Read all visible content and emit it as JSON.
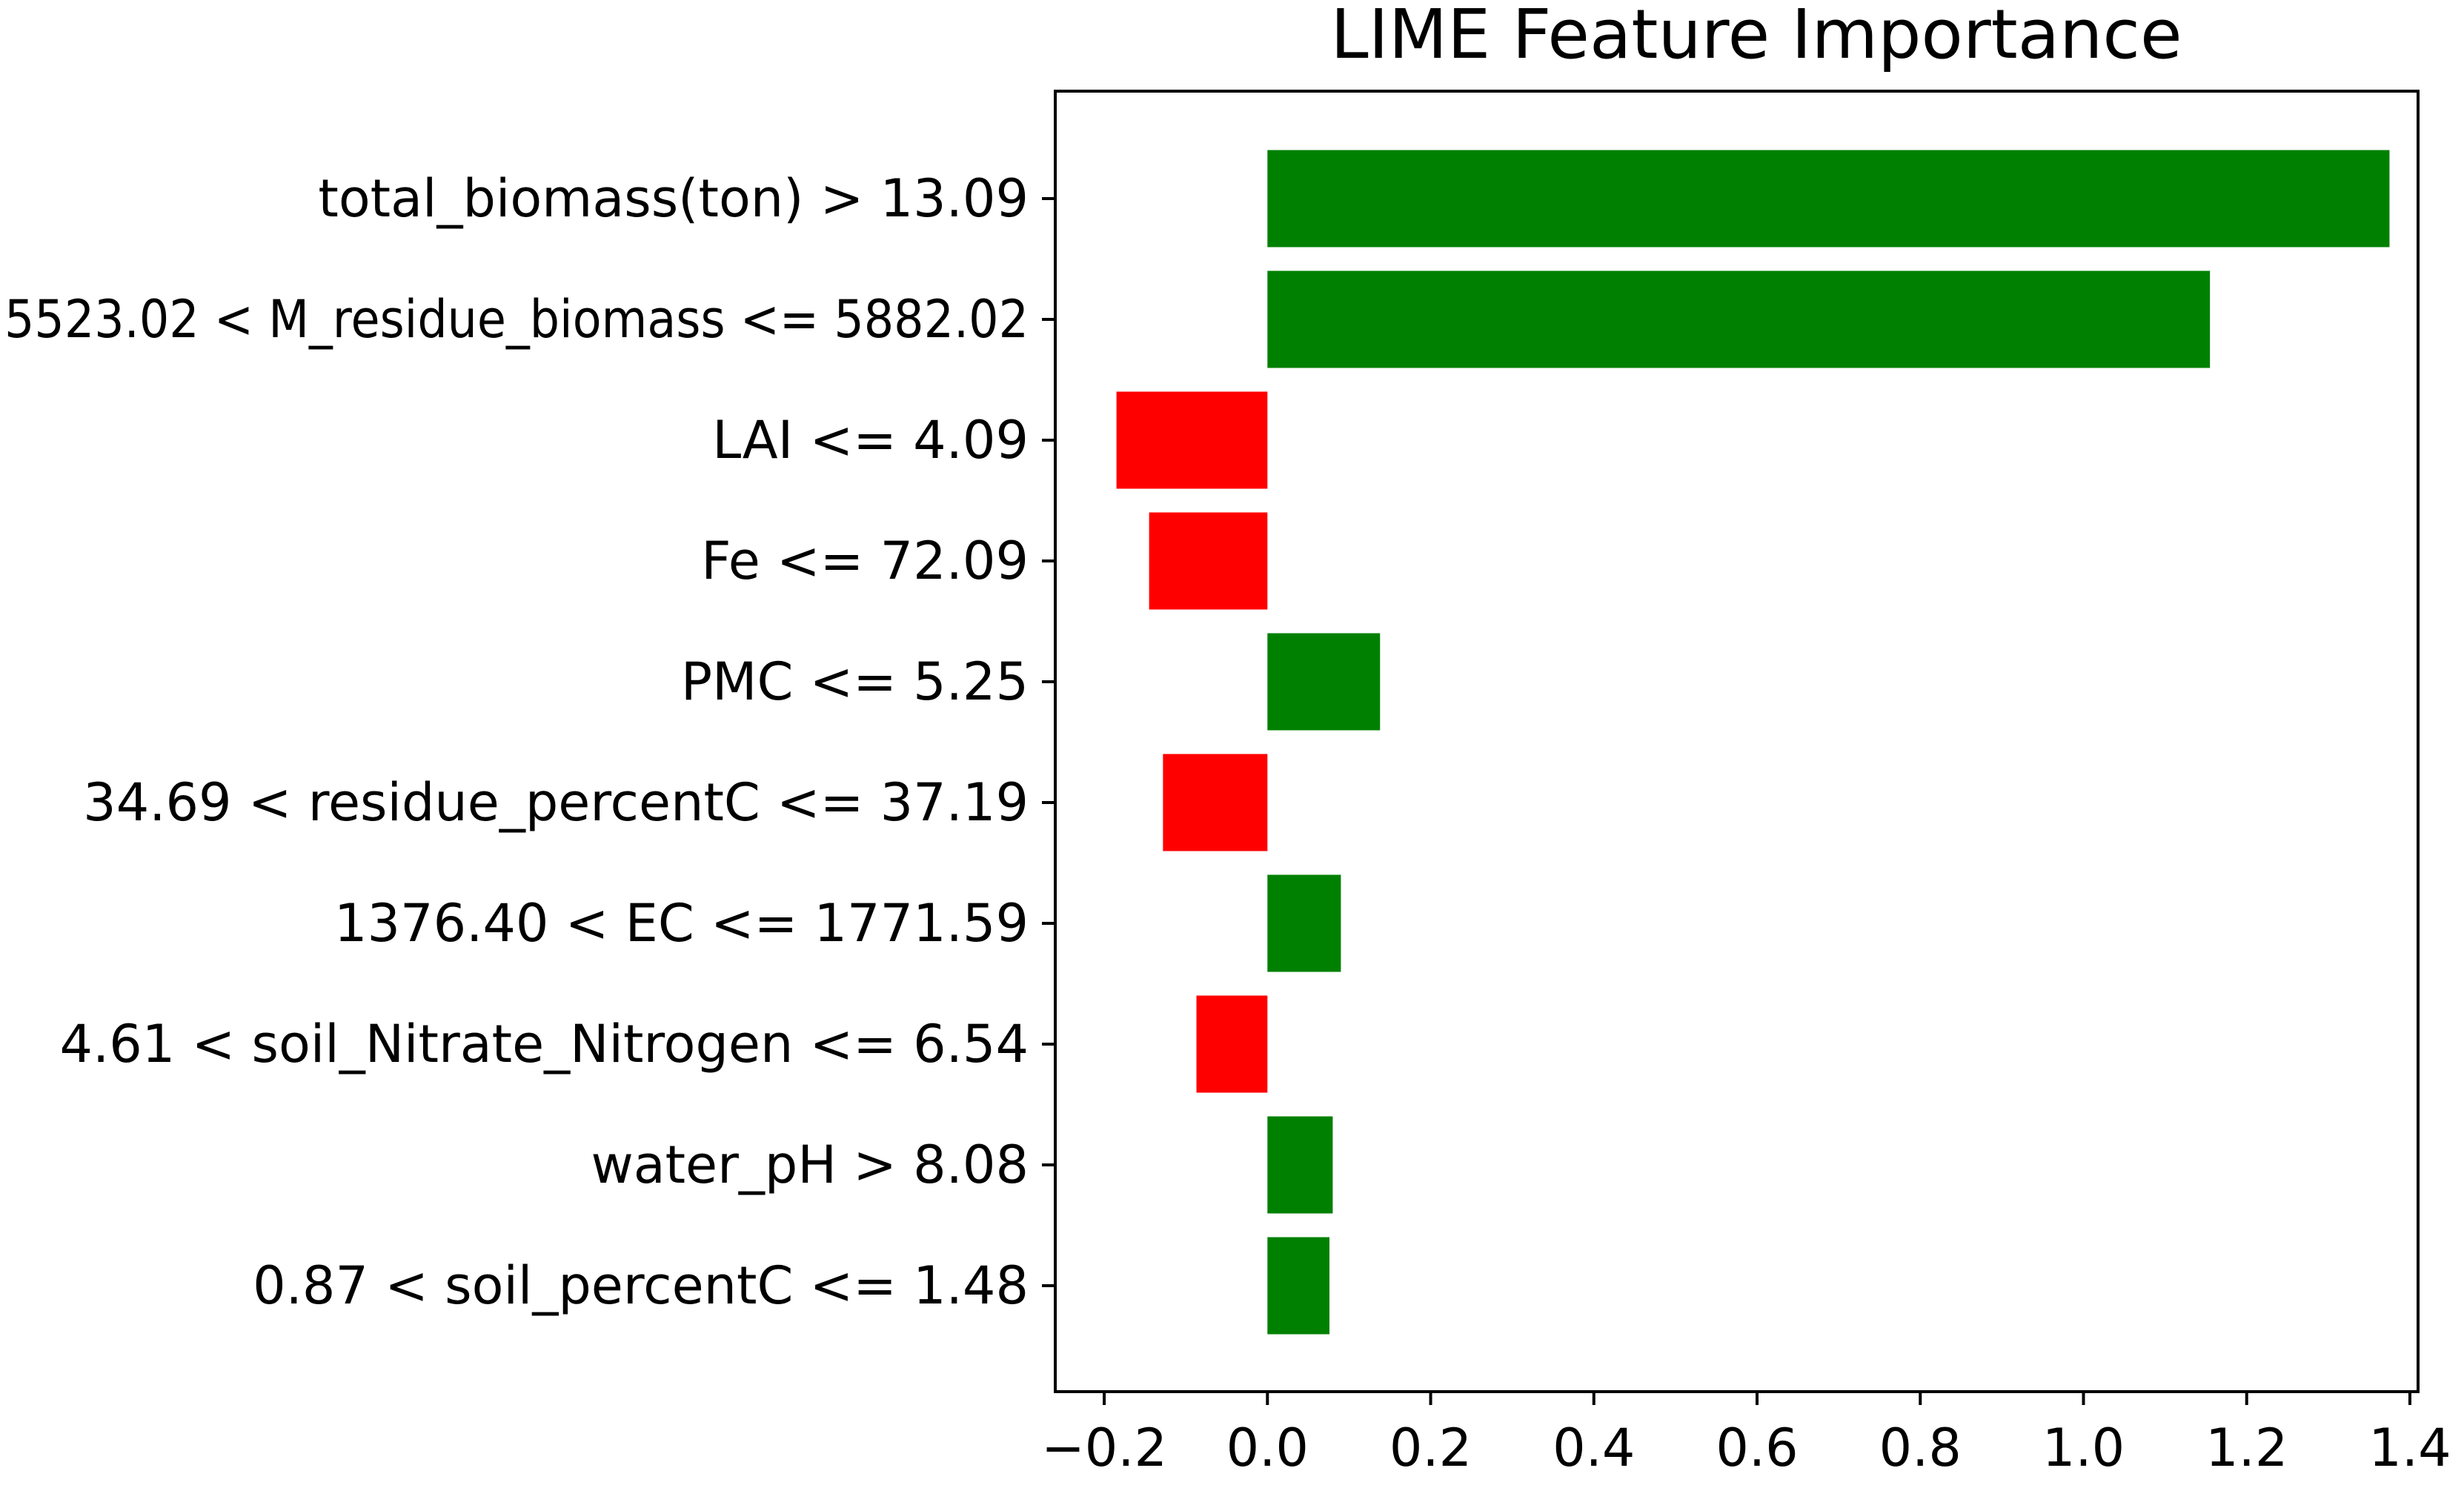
{
  "chart_data": {
    "type": "bar",
    "orientation": "horizontal",
    "title": "LIME Feature Importance",
    "xlabel": "",
    "ylabel": "",
    "categories": [
      "total_biomass(ton) > 13.09",
      "5523.02 < M_residue_biomass <= 5882.02",
      "LAI <= 4.09",
      "Fe <= 72.09",
      "PMC <= 5.25",
      "34.69 < residue_percentC <= 37.19",
      "1376.40 < EC <= 1771.59",
      "4.61 < soil_Nitrate_Nitrogen <= 6.54",
      "water_pH > 8.08",
      "0.87 < soil_percentC <= 1.48"
    ],
    "values": [
      1.375,
      1.155,
      -0.185,
      -0.145,
      0.138,
      -0.128,
      0.09,
      -0.087,
      0.08,
      0.076
    ],
    "xlim": [
      -0.26,
      1.41
    ],
    "xticks": [
      -0.2,
      0.0,
      0.2,
      0.4,
      0.6,
      0.8,
      1.0,
      1.2,
      1.4
    ],
    "xtick_labels": [
      "−0.2",
      "0.0",
      "0.2",
      "0.4",
      "0.6",
      "0.8",
      "1.0",
      "1.2",
      "1.4"
    ],
    "grid": false,
    "legend": "none",
    "colors": {
      "positive": "#008000",
      "negative": "#ff0000",
      "axes": "#000000",
      "background": "#ffffff"
    }
  }
}
